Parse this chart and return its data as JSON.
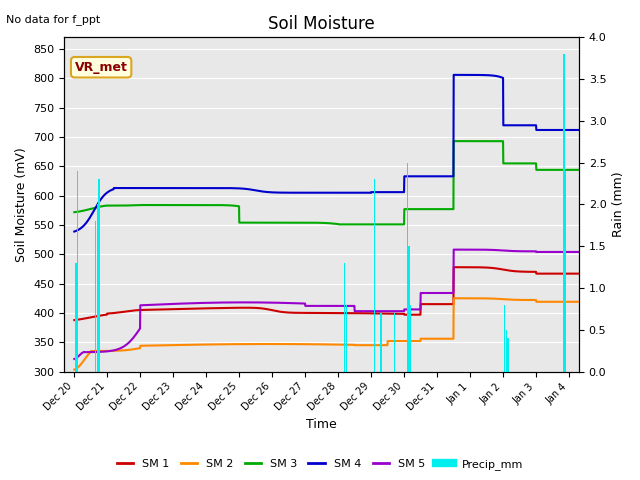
{
  "title": "Soil Moisture",
  "xlabel": "Time",
  "ylabel_left": "Soil Moisture (mV)",
  "ylabel_right": "Rain (mm)",
  "note": "No data for f_ppt",
  "station_label": "VR_met",
  "ylim_left": [
    300,
    870
  ],
  "ylim_right": [
    0.0,
    4.0
  ],
  "yticks_left": [
    300,
    350,
    400,
    450,
    500,
    550,
    600,
    650,
    700,
    750,
    800,
    850
  ],
  "yticks_right": [
    0.0,
    0.5,
    1.0,
    1.5,
    2.0,
    2.5,
    3.0,
    3.5,
    4.0
  ],
  "colors": {
    "SM1": "#cc0000",
    "SM2": "#ff8800",
    "SM3": "#00aa00",
    "SM4": "#0000cc",
    "SM5": "#9900cc",
    "Precip": "#00eeee",
    "bg": "#e8e8e8"
  },
  "legend_labels": [
    "SM 1",
    "SM 2",
    "SM 3",
    "SM 4",
    "SM 5",
    "Precip_mm"
  ]
}
